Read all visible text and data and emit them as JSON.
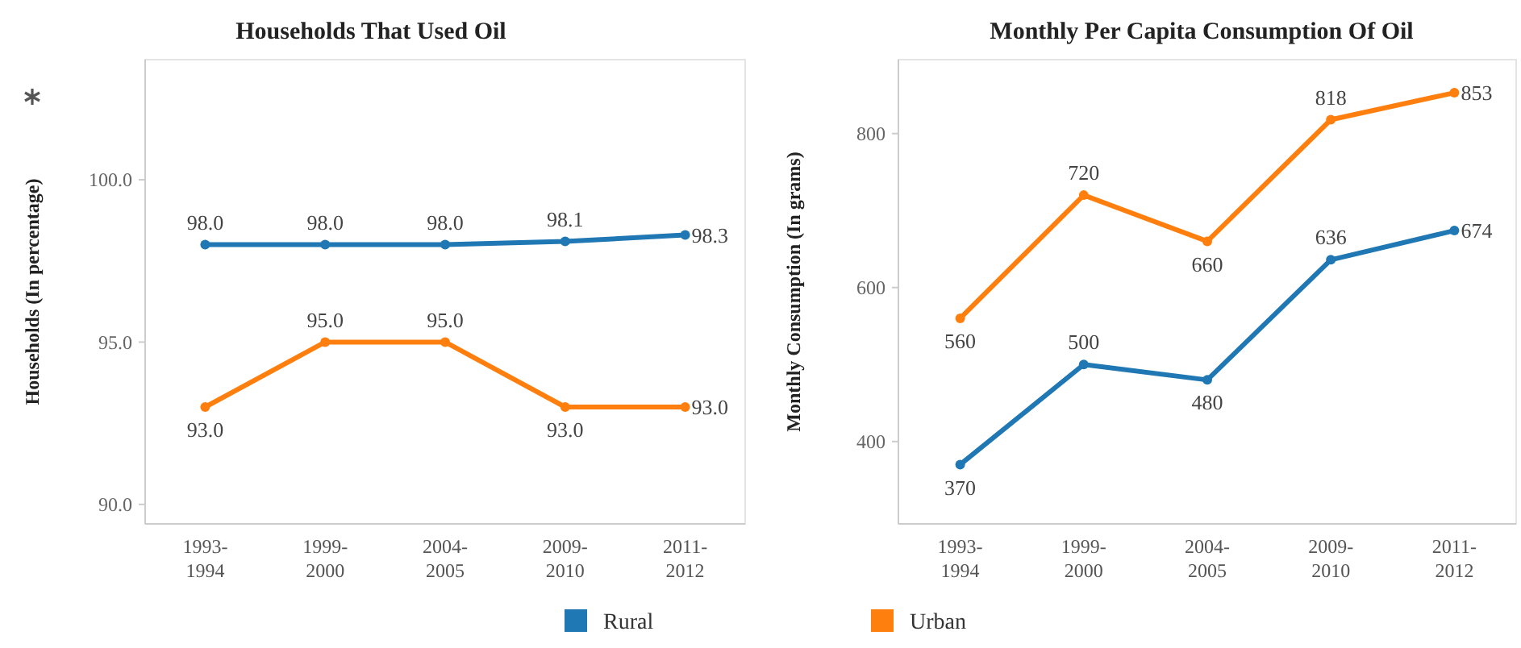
{
  "chart_data": [
    {
      "type": "line",
      "title": "Households That Used Oil",
      "ylabel": "Households (In percentage)",
      "categories": [
        "1993-1994",
        "1999-2000",
        "2004-2005",
        "2009-2010",
        "2011-2012"
      ],
      "series": [
        {
          "name": "Rural",
          "color": "#1f77b4",
          "values": [
            98.0,
            98.0,
            98.0,
            98.1,
            98.3
          ],
          "value_labels": [
            "98.0",
            "98.0",
            "98.0",
            "98.1",
            "98.3"
          ]
        },
        {
          "name": "Urban",
          "color": "#ff7f0e",
          "values": [
            93.0,
            95.0,
            95.0,
            93.0,
            93.0
          ],
          "value_labels": [
            "93.0",
            "95.0",
            "95.0",
            "93.0",
            "93.0"
          ]
        }
      ],
      "ylim": [
        89.4,
        103.7
      ],
      "yticks": [
        {
          "value": 90,
          "label": "90.0"
        },
        {
          "value": 95,
          "label": "95.0"
        },
        {
          "value": 100,
          "label": "100.0"
        }
      ],
      "marker": "circle",
      "legend": "bottom",
      "grid": false
    },
    {
      "type": "line",
      "title": "Monthly Per Capita Consumption Of Oil",
      "ylabel": "Monthly Consumption (In grams)",
      "categories": [
        "1993-1994",
        "1999-2000",
        "2004-2005",
        "2009-2010",
        "2011-2012"
      ],
      "series": [
        {
          "name": "Rural",
          "color": "#1f77b4",
          "values": [
            370,
            500,
            480,
            636,
            674
          ]
        },
        {
          "name": "Urban",
          "color": "#ff7f0e",
          "values": [
            560,
            720,
            660,
            818,
            853
          ]
        }
      ],
      "ylim": [
        293,
        896
      ],
      "yticks": [
        400,
        600,
        800
      ],
      "data_labels": true,
      "marker": "circle",
      "legend": "bottom",
      "grid": false
    }
  ]
}
